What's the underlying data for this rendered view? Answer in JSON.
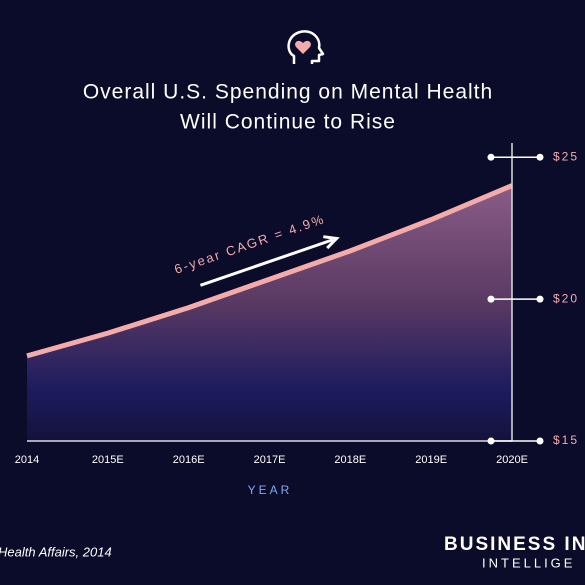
{
  "chart_data": {
    "type": "area",
    "title": "Overall U.S. Spending on Mental Health",
    "subtitle": "Will Continue to Rise",
    "categories": [
      "2014",
      "2015E",
      "2016E",
      "2017E",
      "2018E",
      "2019E",
      "2020E"
    ],
    "values": [
      18.0,
      18.8,
      19.7,
      20.7,
      21.7,
      22.8,
      24.0
    ],
    "color": "#f6abab",
    "ylim": [
      15,
      25.5
    ],
    "yticks": [
      {
        "value": 15,
        "label": "$15"
      },
      {
        "value": 20,
        "label": "$20"
      },
      {
        "value": 25,
        "label": "$25"
      }
    ],
    "xlabel": "YEAR",
    "annotation": "6-year CAGR = 4.9%",
    "source": "Health Affairs, 2014",
    "brand": [
      "BUSINESS IN",
      "INTELLIGE"
    ]
  }
}
